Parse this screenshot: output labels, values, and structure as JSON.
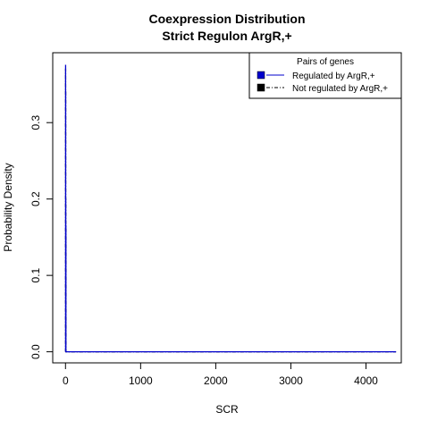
{
  "chart_data": {
    "type": "line",
    "title": "Coexpression Distribution",
    "subtitle": "Strict Regulon ArgR,+",
    "xlabel": "SCR",
    "ylabel": "Probability Density",
    "xlim": [
      -170,
      4470
    ],
    "ylim": [
      -0.0145,
      0.3915
    ],
    "x_ticks": [
      0,
      1000,
      2000,
      3000,
      4000
    ],
    "x_tick_labels": [
      "0",
      "1000",
      "2000",
      "3000",
      "4000"
    ],
    "y_ticks": [
      0.0,
      0.1,
      0.2,
      0.3
    ],
    "y_tick_labels": [
      "0.0",
      "0.1",
      "0.2",
      "0.3"
    ],
    "grid": false,
    "legend": {
      "title": "Pairs of genes",
      "placement": "top-right",
      "entries": [
        {
          "label": "Regulated by  ArgR,+",
          "color": "#0000cc",
          "line_style": "solid"
        },
        {
          "label": "Not regulated by  ArgR,+",
          "color": "#000000",
          "line_style": "dashdot"
        }
      ]
    },
    "series": [
      {
        "name": "Regulated by  ArgR,+",
        "color": "#0000cc",
        "line_style": "solid",
        "x": [
          0,
          1,
          1,
          2,
          2,
          3,
          3,
          4,
          4,
          6,
          6,
          4400
        ],
        "y": [
          0,
          0,
          0.375,
          0.375,
          0.34,
          0.34,
          0.2,
          0.2,
          0.165,
          0.165,
          0,
          0
        ]
      },
      {
        "name": "Not regulated by  ArgR,+",
        "color": "#000000",
        "line_style": "dashdot",
        "x": [
          0,
          1,
          1,
          2,
          2,
          3,
          3,
          4,
          4,
          6,
          6,
          4400
        ],
        "y": [
          0,
          0,
          0.37,
          0.37,
          0.34,
          0.34,
          0.2,
          0.2,
          0.16,
          0.16,
          0,
          0
        ]
      }
    ]
  }
}
